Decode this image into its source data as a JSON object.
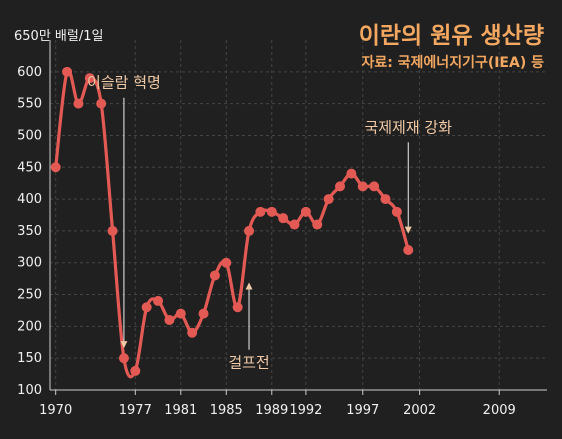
{
  "chart_data": {
    "type": "line",
    "title": "이란의 원유 생산량",
    "subtitle": "자료: 국제에너지기구(IEA) 등",
    "ylabel": "650만 배럴/1일",
    "ylim": [
      100,
      650
    ],
    "yticks": [
      100,
      150,
      200,
      250,
      300,
      350,
      400,
      450,
      500,
      550,
      600
    ],
    "xlim": [
      1969.5,
      2013.2
    ],
    "xticks": [
      1970,
      1977,
      1981,
      1985,
      1989,
      1992,
      1997,
      2002,
      2009
    ],
    "xtick_labels": [
      "1970",
      "1977",
      "1981",
      "1985",
      "1989",
      "1992",
      "1997",
      "2002",
      "2009"
    ],
    "grid": true,
    "line_color": "#e35a55",
    "series": [
      {
        "points": [
          [
            1970,
            450
          ],
          [
            1971,
            600
          ],
          [
            1972,
            550
          ],
          [
            1973,
            590
          ],
          [
            1974,
            550
          ],
          [
            1975,
            350
          ],
          [
            1976,
            150
          ],
          [
            1977,
            130
          ],
          [
            1978,
            230
          ],
          [
            1979,
            240
          ],
          [
            1980,
            210
          ],
          [
            1981,
            220
          ],
          [
            1982,
            190
          ],
          [
            1983,
            220
          ],
          [
            1984,
            280
          ],
          [
            1985,
            300
          ],
          [
            1986,
            230
          ],
          [
            1987,
            350
          ],
          [
            1988,
            380
          ],
          [
            1989,
            380
          ],
          [
            1990,
            370
          ],
          [
            1991,
            360
          ],
          [
            1992,
            380
          ],
          [
            1993,
            360
          ],
          [
            1994,
            400
          ],
          [
            1995,
            420
          ],
          [
            1996,
            440
          ],
          [
            1997,
            420
          ],
          [
            1998,
            420
          ],
          [
            1999,
            400
          ],
          [
            2000,
            380
          ],
          [
            2001,
            320
          ]
        ]
      }
    ],
    "annotations": [
      {
        "text": "이슬람 혁명",
        "x": 1976,
        "y": 150,
        "label_y": 575,
        "arrow": "down"
      },
      {
        "text": "걸프전",
        "x": 1987,
        "y": 272,
        "label_y": 135,
        "arrow": "up"
      },
      {
        "text": "국제제재 강화",
        "x": 2001,
        "y": 330,
        "label_y": 505,
        "arrow": "down"
      }
    ]
  }
}
